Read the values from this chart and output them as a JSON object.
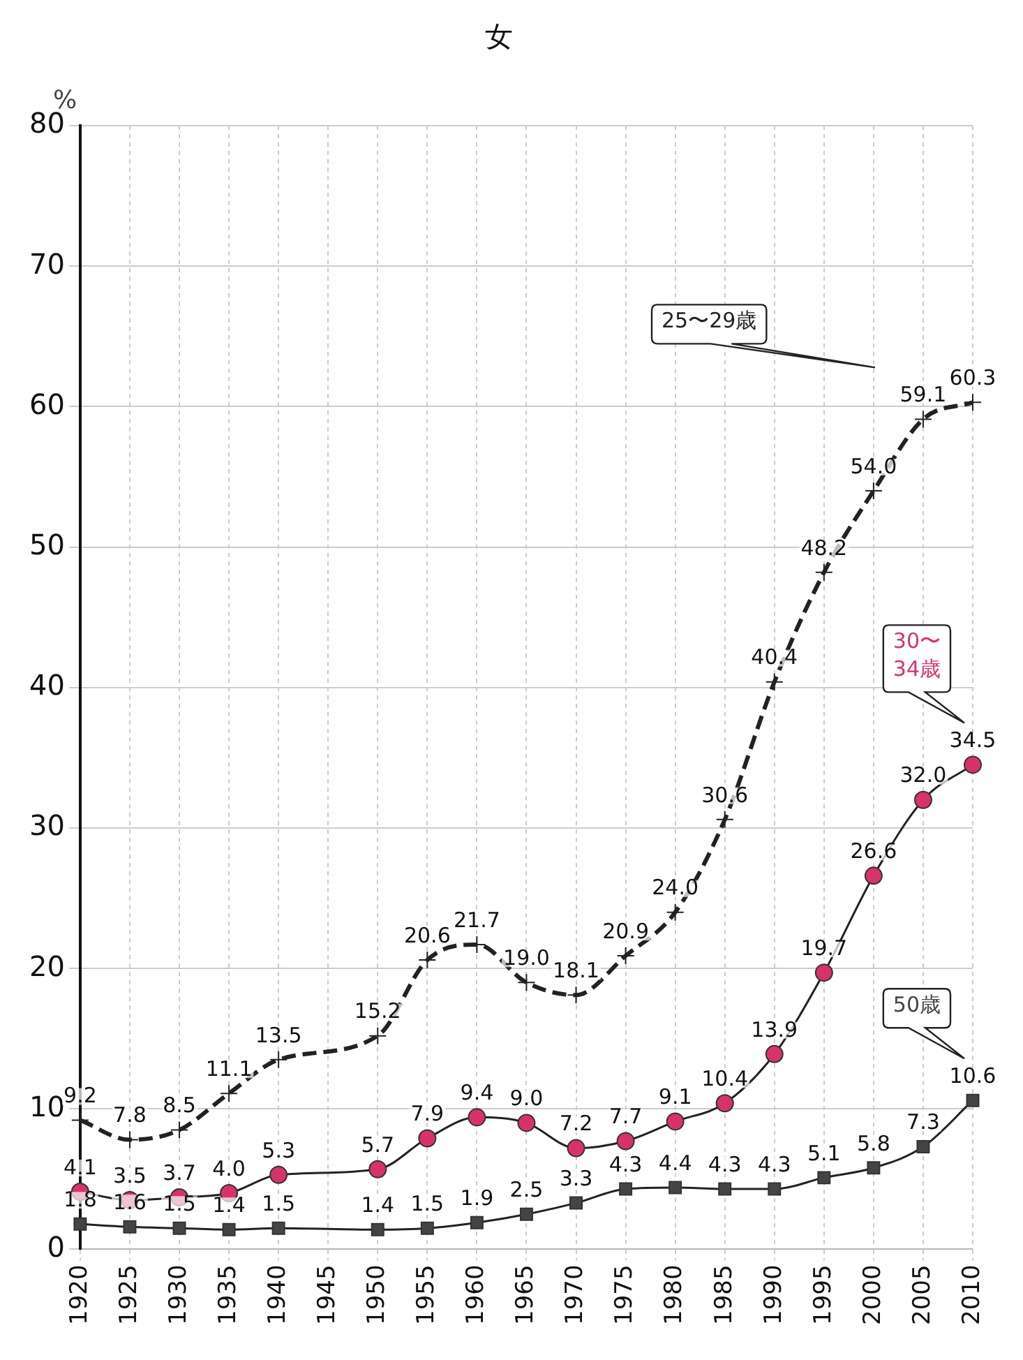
{
  "chart_data": {
    "type": "line",
    "title": "女",
    "ylabel": "%",
    "categories": [
      "1920",
      "1925",
      "1930",
      "1935",
      "1940",
      "1945",
      "1950",
      "1955",
      "1960",
      "1965",
      "1970",
      "1975",
      "1980",
      "1985",
      "1990",
      "1995",
      "2000",
      "2005",
      "2010"
    ],
    "series": [
      {
        "name": "25〜29歳",
        "color": "#222222",
        "marker": "cross",
        "line_style": "dashed",
        "values": [
          9.2,
          7.8,
          8.5,
          11.1,
          13.5,
          null,
          15.2,
          20.6,
          21.7,
          19.0,
          18.1,
          20.9,
          24.0,
          30.6,
          40.4,
          48.2,
          54.0,
          59.1,
          60.3
        ],
        "value_labels": [
          "9.2",
          "7.8",
          "8.5",
          "11.1",
          "13.5",
          null,
          "15.2",
          "20.6",
          "21.7",
          "19.0",
          "18.1",
          "20.9",
          "24.0",
          "30.6",
          "40.4",
          "48.2",
          "54.0",
          "59.1",
          "60.3"
        ]
      },
      {
        "name": "30〜34歳",
        "color": "#d6336c",
        "marker": "circle",
        "line_style": "solid",
        "values": [
          4.1,
          3.5,
          3.7,
          4.0,
          5.3,
          null,
          5.7,
          7.9,
          9.4,
          9.0,
          7.2,
          7.7,
          9.1,
          10.4,
          13.9,
          19.7,
          26.6,
          32.0,
          34.5
        ],
        "value_labels": [
          "4.1",
          "3.5",
          "3.7",
          "4.0",
          "5.3",
          null,
          "5.7",
          "7.9",
          "9.4",
          "9.0",
          "7.2",
          "7.7",
          "9.1",
          "10.4",
          "13.9",
          "19.7",
          "26.6",
          "32.0",
          "34.5"
        ]
      },
      {
        "name": "50歳",
        "color": "#444444",
        "marker": "square",
        "line_style": "solid",
        "values": [
          1.8,
          1.6,
          1.5,
          1.4,
          1.5,
          null,
          1.4,
          1.5,
          1.9,
          2.5,
          3.3,
          4.3,
          4.4,
          4.3,
          4.3,
          5.1,
          5.8,
          7.3,
          10.6
        ],
        "value_labels": [
          "1.8",
          "1.6",
          "1.5",
          "1.4",
          "1.5",
          null,
          "1.4",
          "1.5",
          "1.9",
          "2.5",
          "3.3",
          "4.3",
          "4.4",
          "4.3",
          "4.3",
          "5.1",
          "5.8",
          "7.3",
          "10.6"
        ]
      }
    ],
    "ylim": [
      0,
      80
    ],
    "yticks": [
      0,
      10,
      20,
      30,
      40,
      50,
      60,
      70,
      80
    ],
    "grid": true,
    "legend": false
  }
}
